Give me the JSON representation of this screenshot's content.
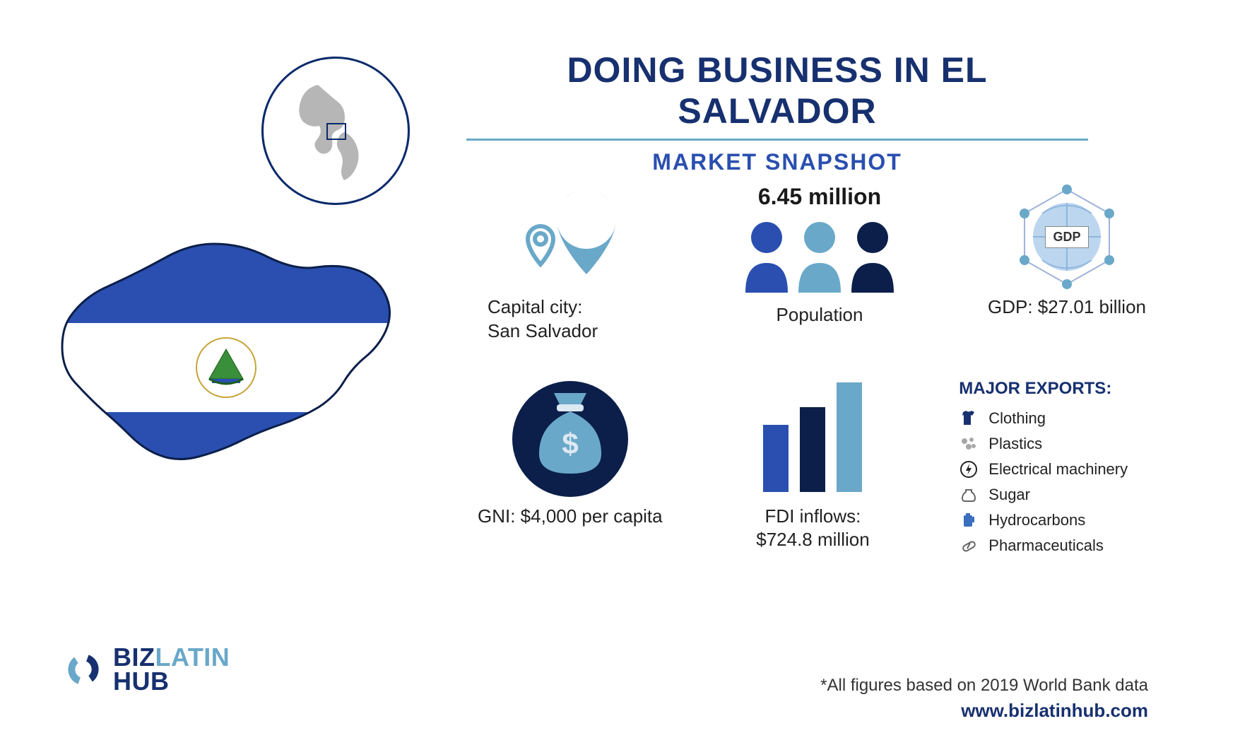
{
  "colors": {
    "brand_navy": "#17306f",
    "brand_blue": "#2a4fb0",
    "light_blue": "#6aa8c9",
    "mid_blue": "#3a6fbf",
    "dark_navy": "#0b1f4a",
    "text": "#222222",
    "gray": "#a8a8a8",
    "white": "#ffffff"
  },
  "title": "DOING BUSINESS IN EL SALVADOR",
  "subtitle": "MARKET SNAPSHOT",
  "capital": {
    "label": "Capital city:",
    "value": "San Salvador"
  },
  "population": {
    "value": "6.45 million",
    "label": "Population"
  },
  "gdp": {
    "badge": "GDP",
    "label": "GDP: $27.01 billion"
  },
  "gni": {
    "label": "GNI: $4,000 per capita"
  },
  "fdi": {
    "label": "FDI inflows:",
    "value": "$724.8 million",
    "bars": [
      95,
      120,
      155
    ],
    "bar_colors": [
      "#2a4fb0",
      "#0b1f4a",
      "#6aa8c9"
    ]
  },
  "exports": {
    "title": "MAJOR EXPORTS:",
    "items": [
      "Clothing",
      "Plastics",
      "Electrical machinery",
      "Sugar",
      "Hydrocarbons",
      "Pharmaceuticals"
    ]
  },
  "footnote": "*All figures based on 2019 World Bank data",
  "url": "www.bizlatinhub.com",
  "logo": {
    "biz": "BIZ",
    "latin": "LATIN",
    "hub": "HUB"
  }
}
